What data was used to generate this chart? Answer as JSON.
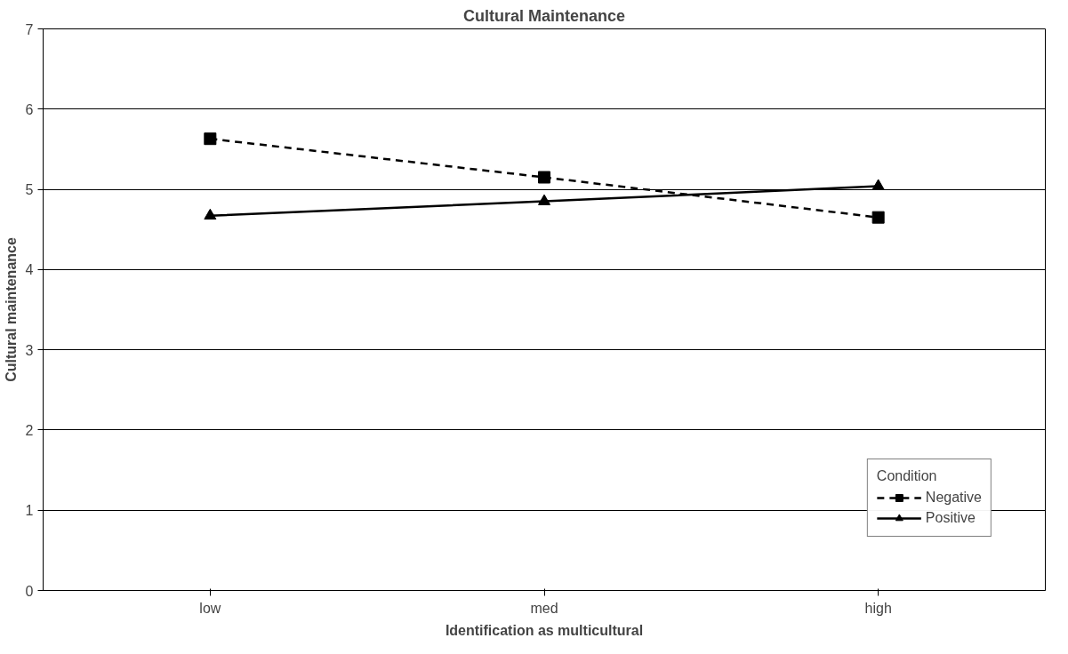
{
  "chart_data": {
    "type": "line",
    "title": "Cultural Maintenance",
    "xlabel": "Identification as multicultural",
    "ylabel": "Cultural maintenance",
    "categories": [
      "low",
      "med",
      "high"
    ],
    "series": [
      {
        "name": "Negative",
        "color": "#000000",
        "values": [
          5.63,
          5.15,
          4.65
        ],
        "marker": "square",
        "line_style": "dashed"
      },
      {
        "name": "Positive",
        "color": "#000000",
        "values": [
          4.67,
          4.85,
          5.04
        ],
        "marker": "triangle",
        "line_style": "solid"
      }
    ],
    "ylim": [
      0,
      7
    ],
    "yticks": [
      0,
      1,
      2,
      3,
      4,
      5,
      6,
      7
    ],
    "grid": "y",
    "legend": "bottom right",
    "legend_title": "Condition"
  }
}
